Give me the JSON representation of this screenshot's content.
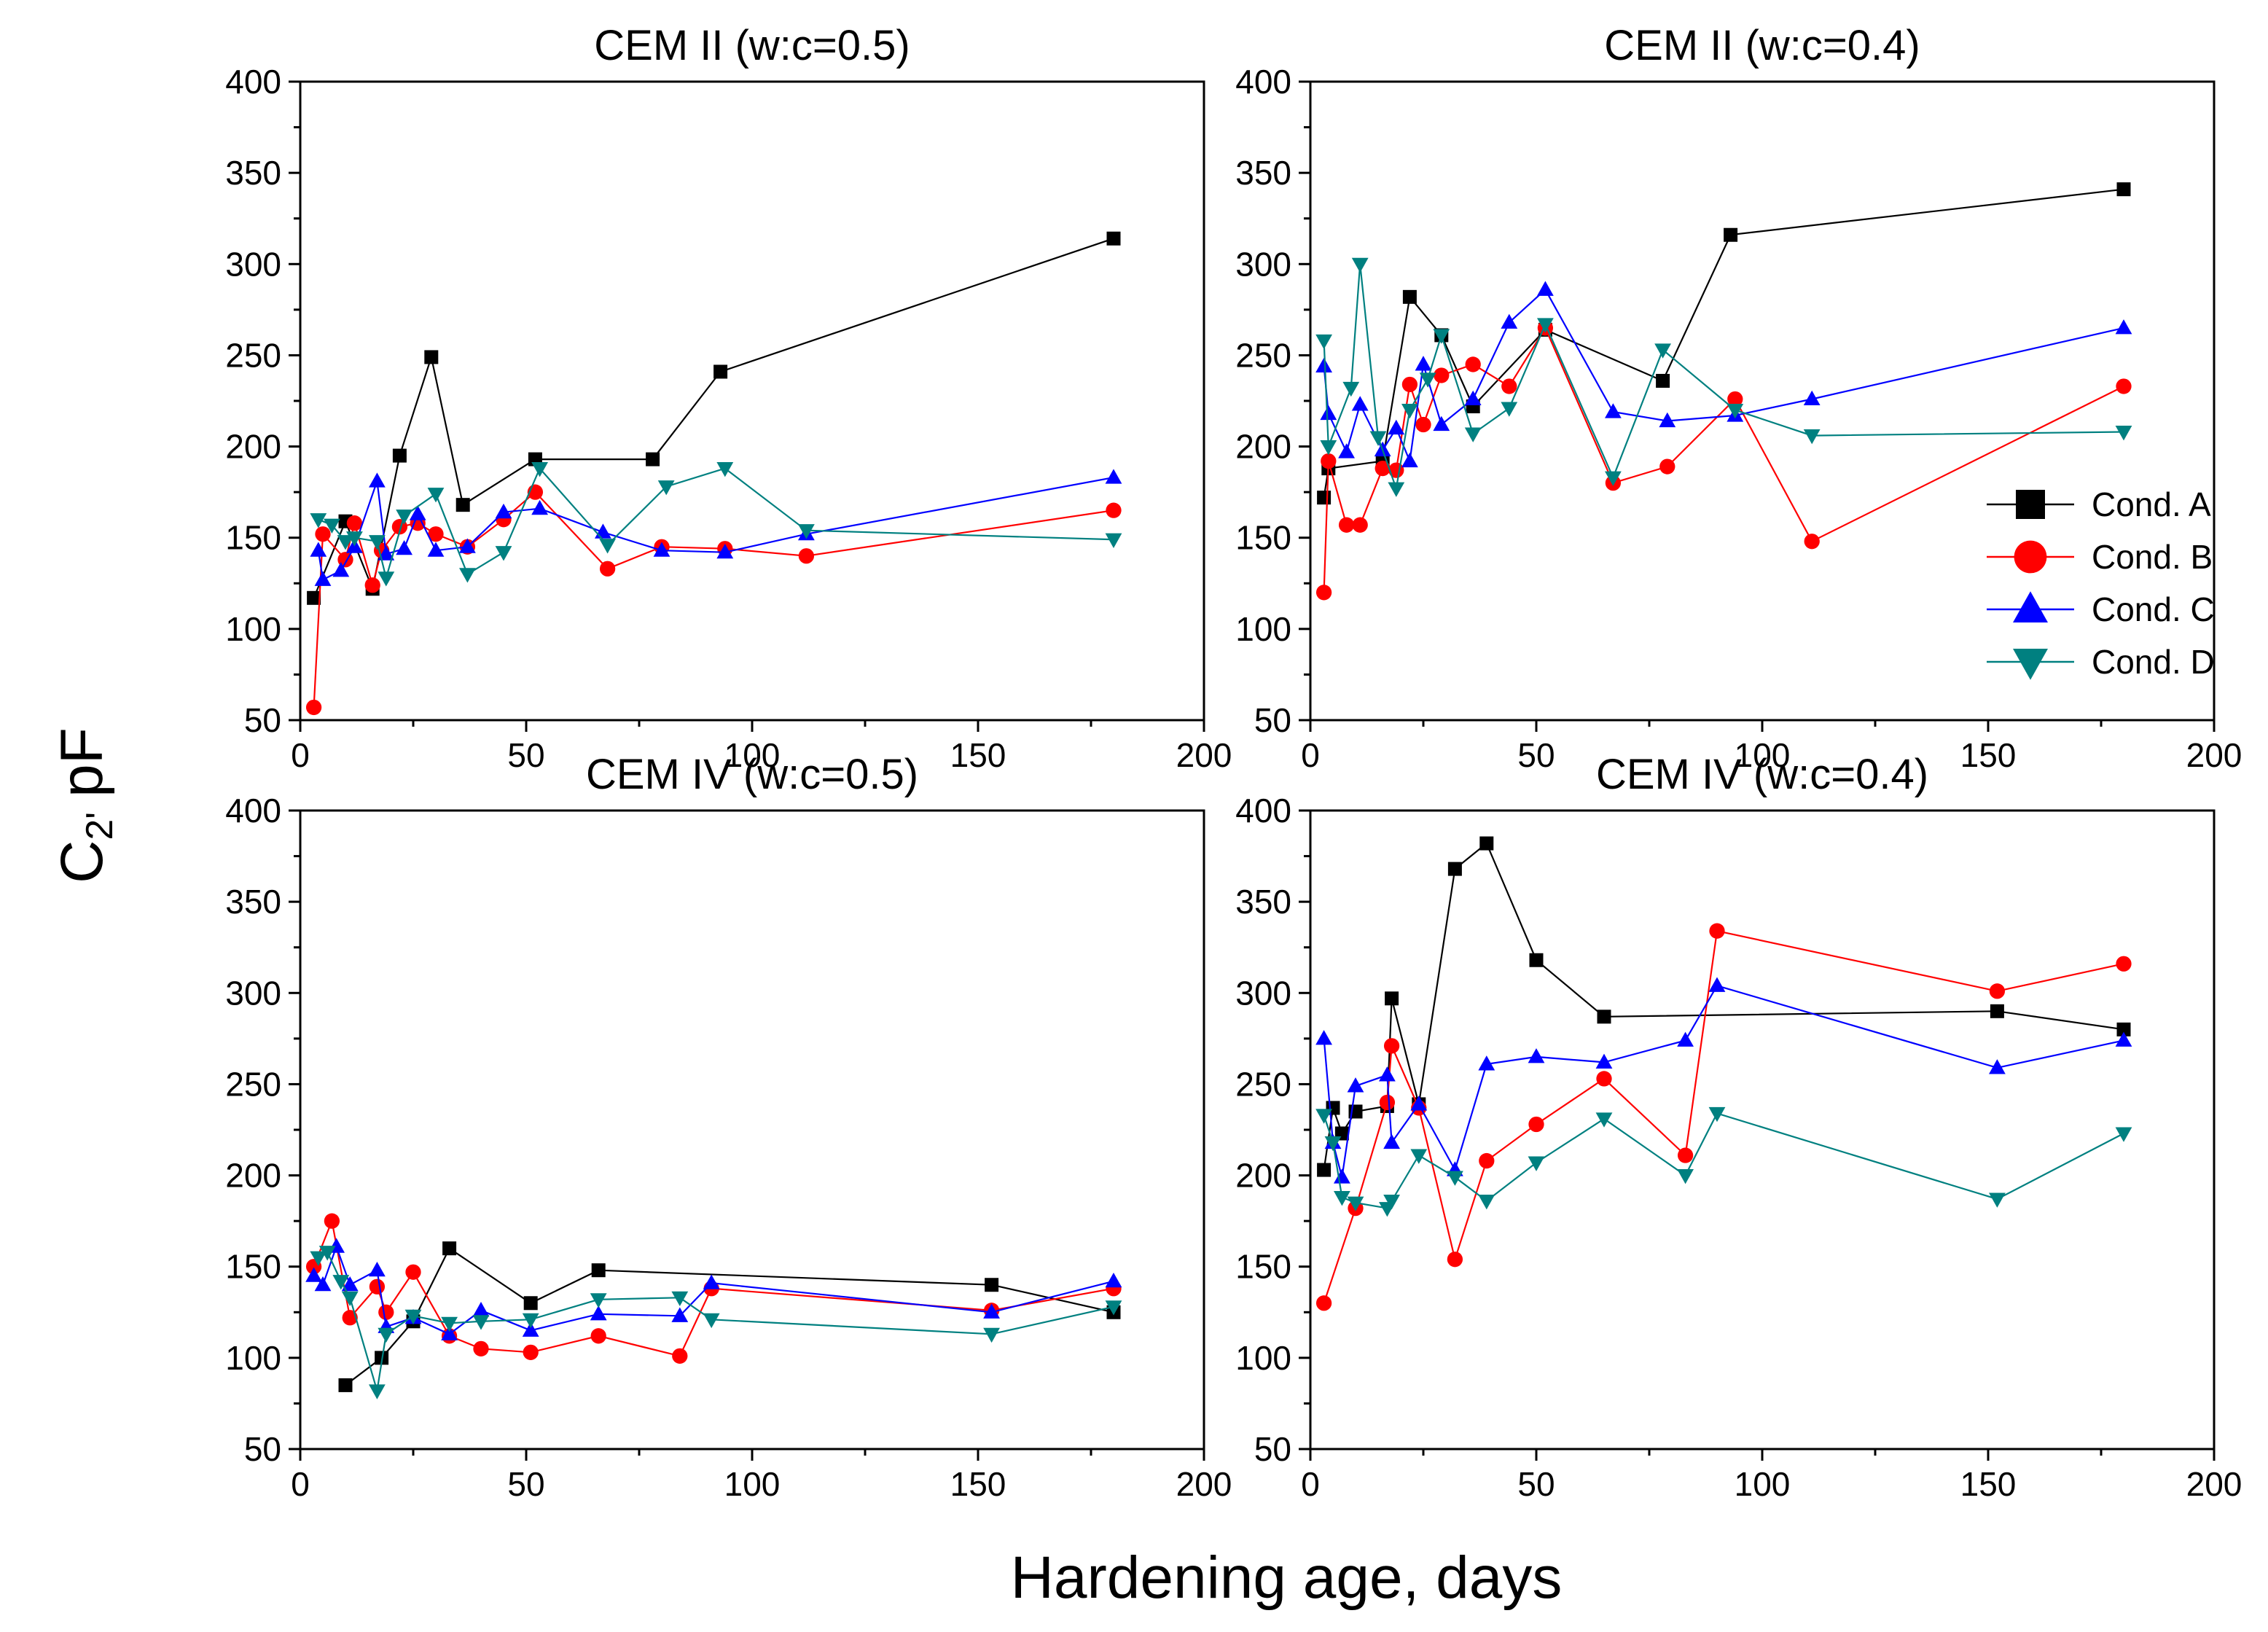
{
  "figure": {
    "ylabel_main": "C",
    "ylabel_sub": "2'",
    "ylabel_unit": "pF",
    "xlabel": "Hardening age, days"
  },
  "chart_data": [
    {
      "type": "line",
      "title": "CEM II (w:c=0.5)",
      "xlim": [
        0,
        200
      ],
      "ylim": [
        50,
        400
      ],
      "xticks": [
        0,
        50,
        100,
        150,
        200
      ],
      "yticks": [
        50,
        100,
        150,
        200,
        250,
        300,
        350,
        400
      ],
      "series": [
        {
          "name": "Cond. A",
          "x": [
            3,
            10,
            16,
            22,
            29,
            36,
            52,
            78,
            93,
            180
          ],
          "y": [
            117,
            159,
            122,
            195,
            249,
            168,
            193,
            193,
            241,
            314
          ]
        },
        {
          "name": "Cond. B",
          "x": [
            3,
            5,
            10,
            12,
            16,
            18,
            22,
            26,
            30,
            37,
            45,
            52,
            68,
            80,
            94,
            112,
            180
          ],
          "y": [
            57,
            152,
            138,
            158,
            124,
            143,
            156,
            158,
            152,
            145,
            160,
            175,
            133,
            145,
            144,
            140,
            165
          ]
        },
        {
          "name": "Cond. C",
          "x": [
            4,
            5,
            9,
            12,
            17,
            19,
            23,
            26,
            30,
            37,
            45,
            53,
            67,
            80,
            94,
            112,
            180
          ],
          "y": [
            143,
            127,
            132,
            145,
            181,
            141,
            144,
            163,
            143,
            145,
            164,
            166,
            153,
            143,
            142,
            152,
            183
          ]
        },
        {
          "name": "Cond. D",
          "x": [
            4,
            7,
            10,
            12,
            17,
            19,
            23,
            30,
            37,
            45,
            53,
            68,
            81,
            94,
            112,
            180
          ],
          "y": [
            160,
            157,
            148,
            150,
            148,
            128,
            162,
            174,
            130,
            142,
            188,
            146,
            178,
            188,
            154,
            149
          ]
        }
      ]
    },
    {
      "type": "line",
      "title": "CEM II (w:c=0.4)",
      "xlim": [
        0,
        200
      ],
      "ylim": [
        50,
        400
      ],
      "xticks": [
        0,
        50,
        100,
        150,
        200
      ],
      "yticks": [
        50,
        100,
        150,
        200,
        250,
        300,
        350,
        400
      ],
      "series": [
        {
          "name": "Cond. A",
          "x": [
            3,
            4,
            16,
            22,
            29,
            36,
            52,
            78,
            93,
            180
          ],
          "y": [
            172,
            188,
            192,
            282,
            261,
            222,
            264,
            236,
            316,
            341
          ]
        },
        {
          "name": "Cond. B",
          "x": [
            3,
            4,
            8,
            11,
            16,
            19,
            22,
            25,
            29,
            36,
            44,
            52,
            67,
            79,
            94,
            111,
            180
          ],
          "y": [
            120,
            192,
            157,
            157,
            188,
            187,
            234,
            212,
            239,
            245,
            233,
            265,
            180,
            189,
            226,
            148,
            233
          ]
        },
        {
          "name": "Cond. C",
          "x": [
            3,
            4,
            8,
            11,
            16,
            19,
            22,
            25,
            29,
            36,
            44,
            52,
            67,
            79,
            94,
            111,
            180
          ],
          "y": [
            244,
            218,
            197,
            223,
            198,
            210,
            192,
            245,
            212,
            226,
            268,
            286,
            219,
            214,
            217,
            226,
            265
          ]
        },
        {
          "name": "Cond. D",
          "x": [
            3,
            4,
            9,
            11,
            15,
            19,
            22,
            26,
            29,
            36,
            44,
            52,
            67,
            78,
            94,
            111,
            180
          ],
          "y": [
            258,
            200,
            232,
            300,
            205,
            177,
            220,
            237,
            261,
            207,
            221,
            267,
            183,
            253,
            220,
            206,
            208
          ]
        }
      ]
    },
    {
      "type": "line",
      "title": "CEM IV (w:c=0.5)",
      "xlim": [
        0,
        200
      ],
      "ylim": [
        50,
        400
      ],
      "xticks": [
        0,
        50,
        100,
        150,
        200
      ],
      "yticks": [
        50,
        100,
        150,
        200,
        250,
        300,
        350,
        400
      ],
      "series": [
        {
          "name": "Cond. A",
          "x": [
            10,
            18,
            25,
            33,
            51,
            66,
            153,
            180
          ],
          "y": [
            85,
            100,
            120,
            160,
            130,
            148,
            140,
            125
          ]
        },
        {
          "name": "Cond. B",
          "x": [
            3,
            7,
            11,
            17,
            19,
            25,
            33,
            40,
            51,
            66,
            84,
            91,
            153,
            180
          ],
          "y": [
            150,
            175,
            122,
            139,
            125,
            147,
            112,
            105,
            103,
            112,
            101,
            138,
            126,
            138
          ]
        },
        {
          "name": "Cond. C",
          "x": [
            3,
            5,
            8,
            11,
            17,
            19,
            25,
            33,
            40,
            51,
            66,
            84,
            91,
            153,
            180
          ],
          "y": [
            145,
            140,
            161,
            140,
            148,
            117,
            122,
            113,
            126,
            115,
            124,
            123,
            141,
            125,
            142
          ]
        },
        {
          "name": "Cond. D",
          "x": [
            4,
            6,
            9,
            11,
            17,
            19,
            25,
            33,
            40,
            51,
            66,
            84,
            91,
            153,
            180
          ],
          "y": [
            155,
            158,
            142,
            133,
            82,
            113,
            123,
            119,
            120,
            121,
            132,
            133,
            121,
            113,
            128
          ]
        }
      ]
    },
    {
      "type": "line",
      "title": "CEM IV (w:c=0.4)",
      "xlim": [
        0,
        200
      ],
      "ylim": [
        50,
        400
      ],
      "xticks": [
        0,
        50,
        100,
        150,
        200
      ],
      "yticks": [
        50,
        100,
        150,
        200,
        250,
        300,
        350,
        400
      ],
      "series": [
        {
          "name": "Cond. A",
          "x": [
            3,
            5,
            7,
            10,
            17,
            18,
            24,
            32,
            39,
            50,
            65,
            152,
            180
          ],
          "y": [
            203,
            237,
            223,
            235,
            238,
            297,
            239,
            368,
            382,
            318,
            287,
            290,
            280
          ]
        },
        {
          "name": "Cond. B",
          "x": [
            3,
            10,
            17,
            18,
            24,
            32,
            39,
            50,
            65,
            83,
            90,
            152,
            180
          ],
          "y": [
            130,
            182,
            240,
            271,
            237,
            154,
            208,
            228,
            253,
            211,
            334,
            301,
            316
          ]
        },
        {
          "name": "Cond. C",
          "x": [
            3,
            5,
            7,
            10,
            17,
            18,
            24,
            32,
            39,
            50,
            65,
            83,
            90,
            152,
            180
          ],
          "y": [
            275,
            218,
            199,
            249,
            255,
            218,
            239,
            203,
            261,
            265,
            262,
            274,
            304,
            259,
            274
          ]
        },
        {
          "name": "Cond. D",
          "x": [
            3,
            5,
            7,
            10,
            17,
            18,
            24,
            32,
            39,
            50,
            65,
            83,
            90,
            152,
            180
          ],
          "y": [
            233,
            218,
            188,
            185,
            182,
            186,
            211,
            199,
            186,
            207,
            231,
            200,
            234,
            187,
            223
          ]
        }
      ]
    }
  ],
  "legend": {
    "items": [
      {
        "label": "Cond. A",
        "marker": "square",
        "color": "#000000"
      },
      {
        "label": "Cond. B",
        "marker": "circle",
        "color": "#ff0000"
      },
      {
        "label": "Cond. C",
        "marker": "triangle-up",
        "color": "#0000ff"
      },
      {
        "label": "Cond. D",
        "marker": "triangle-down",
        "color": "#008080"
      }
    ]
  },
  "colors": {
    "Cond. A": "#000000",
    "Cond. B": "#ff0000",
    "Cond. C": "#0000ff",
    "Cond. D": "#008080"
  }
}
